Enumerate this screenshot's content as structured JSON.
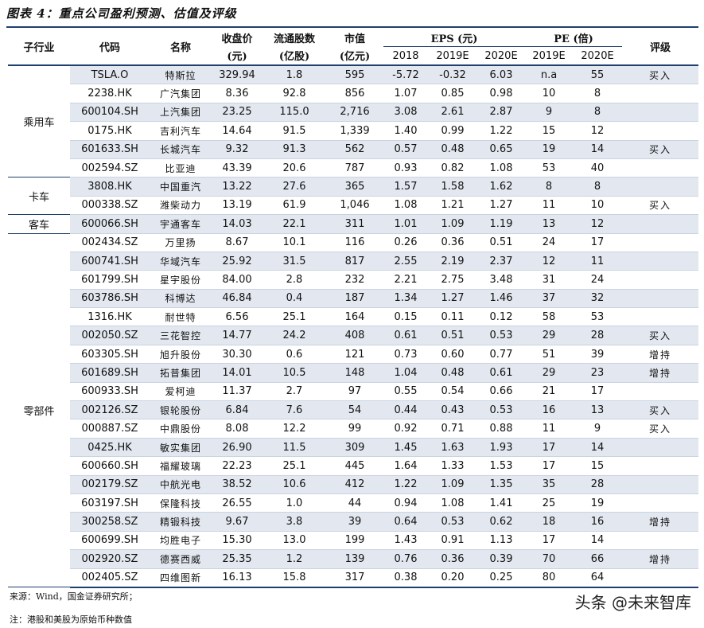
{
  "title": "图表 4：重点公司盈利预测、估值及评级",
  "headers": {
    "segment": "子行业",
    "code": "代码",
    "name": "名称",
    "price_line1": "收盘价",
    "price_line2": "(元)",
    "float_line1": "流通股数",
    "float_line2": "(亿股)",
    "mcap_line1": "市值",
    "mcap_line2": "(亿元)",
    "eps_group": "EPS (元)",
    "pe_group": "PE (倍)",
    "rating": "评级",
    "eps_2018": "2018",
    "eps_2019": "2019E",
    "eps_2020": "2020E",
    "pe_2019": "2019E",
    "pe_2020": "2020E"
  },
  "segments": [
    {
      "name": "乘用车",
      "rows": 6
    },
    {
      "name": "卡车",
      "rows": 2
    },
    {
      "name": "客车",
      "rows": 1
    },
    {
      "name": "零部件",
      "rows": 19
    }
  ],
  "rows": [
    {
      "code": "TSLA.O",
      "name": "特斯拉",
      "price": "329.94",
      "float": "1.8",
      "mcap": "595",
      "eps2018": "-5.72",
      "eps2019": "-0.32",
      "eps2020": "6.03",
      "pe2019": "n.a",
      "pe2020": "55",
      "rating": "买入"
    },
    {
      "code": "2238.HK",
      "name": "广汽集团",
      "price": "8.36",
      "float": "92.8",
      "mcap": "856",
      "eps2018": "1.07",
      "eps2019": "0.85",
      "eps2020": "0.98",
      "pe2019": "10",
      "pe2020": "8",
      "rating": ""
    },
    {
      "code": "600104.SH",
      "name": "上汽集团",
      "price": "23.25",
      "float": "115.0",
      "mcap": "2,716",
      "eps2018": "3.08",
      "eps2019": "2.61",
      "eps2020": "2.87",
      "pe2019": "9",
      "pe2020": "8",
      "rating": ""
    },
    {
      "code": "0175.HK",
      "name": "吉利汽车",
      "price": "14.64",
      "float": "91.5",
      "mcap": "1,339",
      "eps2018": "1.40",
      "eps2019": "0.99",
      "eps2020": "1.22",
      "pe2019": "15",
      "pe2020": "12",
      "rating": ""
    },
    {
      "code": "601633.SH",
      "name": "长城汽车",
      "price": "9.32",
      "float": "91.3",
      "mcap": "562",
      "eps2018": "0.57",
      "eps2019": "0.48",
      "eps2020": "0.65",
      "pe2019": "19",
      "pe2020": "14",
      "rating": "买入"
    },
    {
      "code": "002594.SZ",
      "name": "比亚迪",
      "price": "43.39",
      "float": "20.6",
      "mcap": "787",
      "eps2018": "0.93",
      "eps2019": "0.82",
      "eps2020": "1.08",
      "pe2019": "53",
      "pe2020": "40",
      "rating": ""
    },
    {
      "code": "3808.HK",
      "name": "中国重汽",
      "price": "13.22",
      "float": "27.6",
      "mcap": "365",
      "eps2018": "1.57",
      "eps2019": "1.58",
      "eps2020": "1.62",
      "pe2019": "8",
      "pe2020": "8",
      "rating": ""
    },
    {
      "code": "000338.SZ",
      "name": "潍柴动力",
      "price": "13.19",
      "float": "61.9",
      "mcap": "1,046",
      "eps2018": "1.08",
      "eps2019": "1.21",
      "eps2020": "1.27",
      "pe2019": "11",
      "pe2020": "10",
      "rating": "买入"
    },
    {
      "code": "600066.SH",
      "name": "宇通客车",
      "price": "14.03",
      "float": "22.1",
      "mcap": "311",
      "eps2018": "1.01",
      "eps2019": "1.09",
      "eps2020": "1.19",
      "pe2019": "13",
      "pe2020": "12",
      "rating": ""
    },
    {
      "code": "002434.SZ",
      "name": "万里扬",
      "price": "8.67",
      "float": "10.1",
      "mcap": "116",
      "eps2018": "0.26",
      "eps2019": "0.36",
      "eps2020": "0.51",
      "pe2019": "24",
      "pe2020": "17",
      "rating": ""
    },
    {
      "code": "600741.SH",
      "name": "华域汽车",
      "price": "25.92",
      "float": "31.5",
      "mcap": "817",
      "eps2018": "2.55",
      "eps2019": "2.19",
      "eps2020": "2.37",
      "pe2019": "12",
      "pe2020": "11",
      "rating": ""
    },
    {
      "code": "601799.SH",
      "name": "星宇股份",
      "price": "84.00",
      "float": "2.8",
      "mcap": "232",
      "eps2018": "2.21",
      "eps2019": "2.75",
      "eps2020": "3.48",
      "pe2019": "31",
      "pe2020": "24",
      "rating": ""
    },
    {
      "code": "603786.SH",
      "name": "科博达",
      "price": "46.84",
      "float": "0.4",
      "mcap": "187",
      "eps2018": "1.34",
      "eps2019": "1.27",
      "eps2020": "1.46",
      "pe2019": "37",
      "pe2020": "32",
      "rating": ""
    },
    {
      "code": "1316.HK",
      "name": "耐世特",
      "price": "6.56",
      "float": "25.1",
      "mcap": "164",
      "eps2018": "0.15",
      "eps2019": "0.11",
      "eps2020": "0.12",
      "pe2019": "58",
      "pe2020": "53",
      "rating": ""
    },
    {
      "code": "002050.SZ",
      "name": "三花智控",
      "price": "14.77",
      "float": "24.2",
      "mcap": "408",
      "eps2018": "0.61",
      "eps2019": "0.51",
      "eps2020": "0.53",
      "pe2019": "29",
      "pe2020": "28",
      "rating": "买入"
    },
    {
      "code": "603305.SH",
      "name": "旭升股份",
      "price": "30.30",
      "float": "0.6",
      "mcap": "121",
      "eps2018": "0.73",
      "eps2019": "0.60",
      "eps2020": "0.77",
      "pe2019": "51",
      "pe2020": "39",
      "rating": "增持"
    },
    {
      "code": "601689.SH",
      "name": "拓普集团",
      "price": "14.01",
      "float": "10.5",
      "mcap": "148",
      "eps2018": "1.04",
      "eps2019": "0.48",
      "eps2020": "0.61",
      "pe2019": "29",
      "pe2020": "23",
      "rating": "增持"
    },
    {
      "code": "600933.SH",
      "name": "爱柯迪",
      "price": "11.37",
      "float": "2.7",
      "mcap": "97",
      "eps2018": "0.55",
      "eps2019": "0.54",
      "eps2020": "0.66",
      "pe2019": "21",
      "pe2020": "17",
      "rating": ""
    },
    {
      "code": "002126.SZ",
      "name": "银轮股份",
      "price": "6.84",
      "float": "7.6",
      "mcap": "54",
      "eps2018": "0.44",
      "eps2019": "0.43",
      "eps2020": "0.53",
      "pe2019": "16",
      "pe2020": "13",
      "rating": "买入"
    },
    {
      "code": "000887.SZ",
      "name": "中鼎股份",
      "price": "8.08",
      "float": "12.2",
      "mcap": "99",
      "eps2018": "0.92",
      "eps2019": "0.71",
      "eps2020": "0.88",
      "pe2019": "11",
      "pe2020": "9",
      "rating": "买入"
    },
    {
      "code": "0425.HK",
      "name": "敏实集团",
      "price": "26.90",
      "float": "11.5",
      "mcap": "309",
      "eps2018": "1.45",
      "eps2019": "1.63",
      "eps2020": "1.93",
      "pe2019": "17",
      "pe2020": "14",
      "rating": ""
    },
    {
      "code": "600660.SH",
      "name": "福耀玻璃",
      "price": "22.23",
      "float": "25.1",
      "mcap": "445",
      "eps2018": "1.64",
      "eps2019": "1.33",
      "eps2020": "1.53",
      "pe2019": "17",
      "pe2020": "15",
      "rating": ""
    },
    {
      "code": "002179.SZ",
      "name": "中航光电",
      "price": "38.52",
      "float": "10.6",
      "mcap": "412",
      "eps2018": "1.22",
      "eps2019": "1.09",
      "eps2020": "1.35",
      "pe2019": "35",
      "pe2020": "28",
      "rating": ""
    },
    {
      "code": "603197.SH",
      "name": "保隆科技",
      "price": "26.55",
      "float": "1.0",
      "mcap": "44",
      "eps2018": "0.94",
      "eps2019": "1.08",
      "eps2020": "1.41",
      "pe2019": "25",
      "pe2020": "19",
      "rating": ""
    },
    {
      "code": "300258.SZ",
      "name": "精锻科技",
      "price": "9.67",
      "float": "3.8",
      "mcap": "39",
      "eps2018": "0.64",
      "eps2019": "0.53",
      "eps2020": "0.62",
      "pe2019": "18",
      "pe2020": "16",
      "rating": "增持"
    },
    {
      "code": "600699.SH",
      "name": "均胜电子",
      "price": "15.30",
      "float": "13.0",
      "mcap": "199",
      "eps2018": "1.43",
      "eps2019": "0.91",
      "eps2020": "1.13",
      "pe2019": "17",
      "pe2020": "14",
      "rating": ""
    },
    {
      "code": "002920.SZ",
      "name": "德赛西威",
      "price": "25.35",
      "float": "1.2",
      "mcap": "139",
      "eps2018": "0.76",
      "eps2019": "0.36",
      "eps2020": "0.39",
      "pe2019": "70",
      "pe2020": "66",
      "rating": "增持"
    },
    {
      "code": "002405.SZ",
      "name": "四维图新",
      "price": "16.13",
      "float": "15.8",
      "mcap": "317",
      "eps2018": "0.38",
      "eps2019": "0.20",
      "eps2020": "0.25",
      "pe2019": "80",
      "pe2020": "64",
      "rating": ""
    }
  ],
  "source_note": "来源：Wind，国金证券研究所；",
  "footnote": "注：港股和美股为原始币种数值",
  "watermark": "头条 @未来智库",
  "colors": {
    "rule": "#1f3f6e",
    "shade": "#e3e8f0"
  }
}
